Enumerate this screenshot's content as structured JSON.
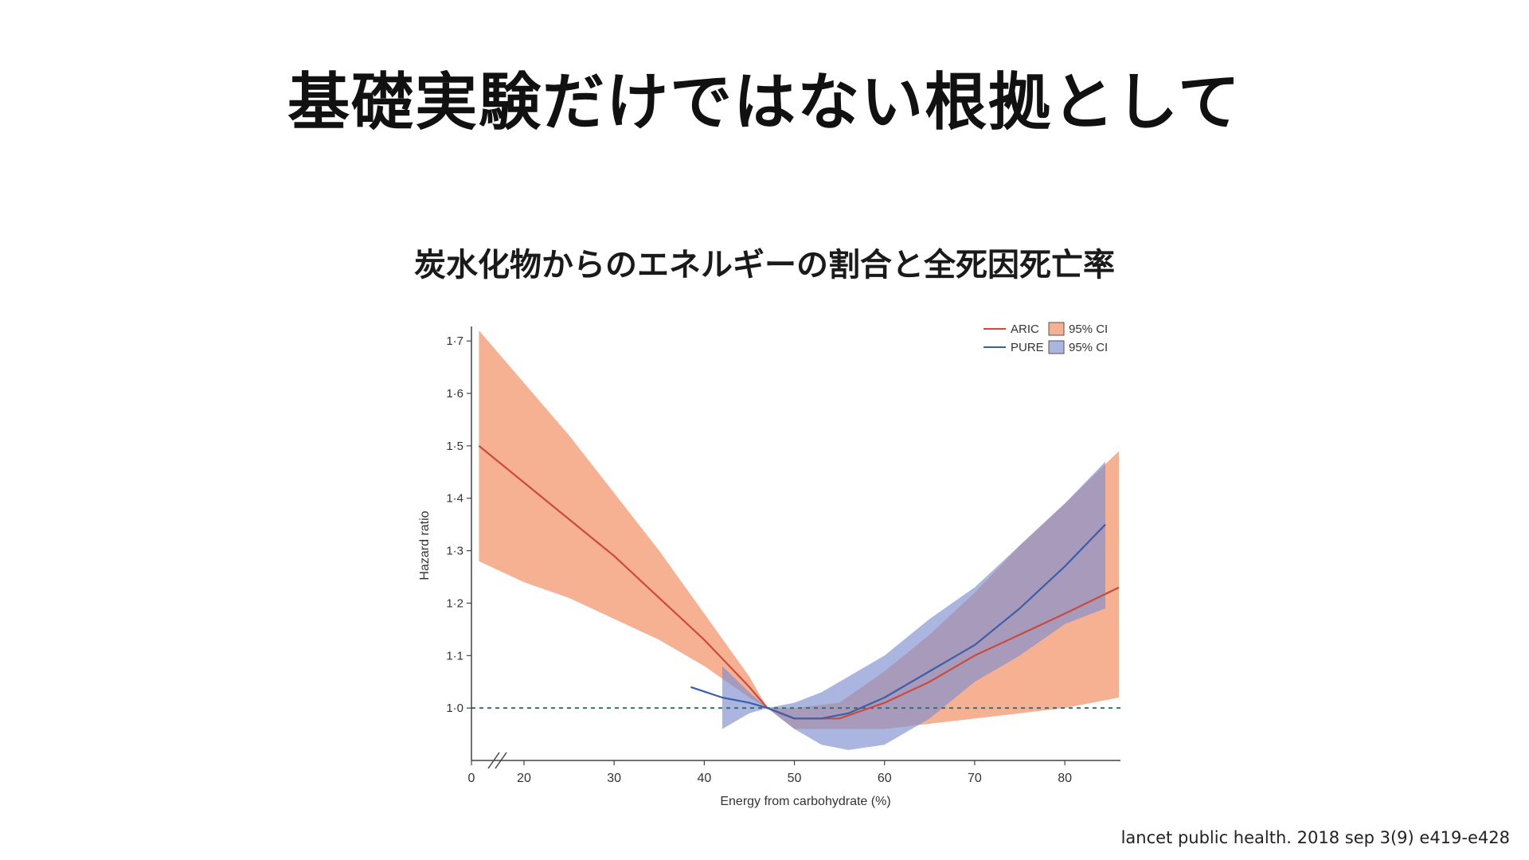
{
  "slide_title": "基礎実験だけではない根拠として",
  "citation": "lancet public health. 2018 sep 3(9) e419-e428",
  "colors": {
    "aric_line": "#cc4a3c",
    "aric_band": "#f4a27f",
    "pure_line": "#3d5fa8",
    "pure_band": "#7d8fcf",
    "reference_line": "#3f6e6e"
  },
  "chart_data": {
    "type": "line",
    "title": "炭水化物からのエネルギーの割合と全死因死亡率",
    "xlabel": "Energy from carbohydrate (%)",
    "ylabel": "Hazard ratio",
    "xlim": [
      0,
      86
    ],
    "axis_break_x": "between 0 and 20",
    "x_ticks": [
      0,
      20,
      30,
      40,
      50,
      60,
      70,
      80
    ],
    "x_tick_labels": [
      "0",
      "20",
      "30",
      "40",
      "50",
      "60",
      "70",
      "80"
    ],
    "ylim": [
      0.9,
      1.72
    ],
    "y_ticks": [
      1.0,
      1.1,
      1.2,
      1.3,
      1.4,
      1.5,
      1.6,
      1.7
    ],
    "y_tick_labels": [
      "1·0",
      "1·1",
      "1·2",
      "1·3",
      "1·4",
      "1·5",
      "1·6",
      "1·7"
    ],
    "reference_line": {
      "y": 1.0,
      "style": "dashed"
    },
    "legend": {
      "position": "top-right",
      "entries": [
        {
          "series": "ARIC",
          "label": "ARIC",
          "band_label": "95% CI"
        },
        {
          "series": "PURE",
          "label": "PURE",
          "band_label": "95% CI"
        }
      ]
    },
    "series": [
      {
        "name": "ARIC",
        "x": [
          15,
          20,
          25,
          30,
          35,
          40,
          45,
          47,
          50,
          55,
          60,
          65,
          70,
          75,
          80,
          86
        ],
        "y": [
          1.5,
          1.43,
          1.36,
          1.29,
          1.21,
          1.13,
          1.04,
          1.0,
          0.98,
          0.98,
          1.01,
          1.05,
          1.1,
          1.14,
          1.18,
          1.23
        ],
        "ci_lower": [
          1.28,
          1.24,
          1.21,
          1.17,
          1.13,
          1.08,
          1.02,
          1.0,
          0.96,
          0.96,
          0.96,
          0.97,
          0.98,
          0.99,
          1.0,
          1.02
        ],
        "ci_upper": [
          1.72,
          1.62,
          1.52,
          1.41,
          1.3,
          1.18,
          1.06,
          1.0,
          1.0,
          1.01,
          1.07,
          1.14,
          1.22,
          1.31,
          1.39,
          1.49
        ]
      },
      {
        "name": "PURE",
        "x": [
          38.5,
          42,
          45,
          47,
          50,
          53,
          56,
          60,
          65,
          70,
          75,
          80,
          84.5
        ],
        "y": [
          1.04,
          1.02,
          1.01,
          1.0,
          0.98,
          0.98,
          0.99,
          1.02,
          1.07,
          1.12,
          1.19,
          1.27,
          1.35
        ],
        "ci_lower": [
          null,
          0.96,
          0.99,
          1.0,
          0.96,
          0.93,
          0.92,
          0.93,
          0.98,
          1.05,
          1.1,
          1.16,
          1.19
        ],
        "ci_upper": [
          null,
          1.08,
          1.03,
          1.0,
          1.01,
          1.03,
          1.06,
          1.1,
          1.17,
          1.23,
          1.31,
          1.39,
          1.47
        ],
        "ci_start_x": 40.5
      }
    ]
  }
}
